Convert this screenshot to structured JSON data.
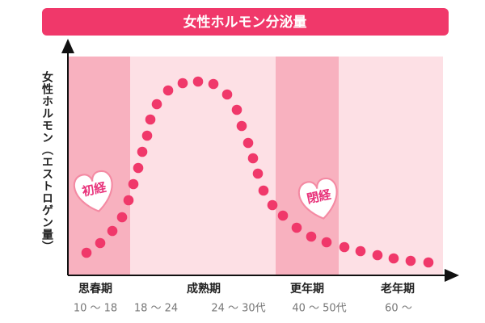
{
  "header": {
    "title": "女性ホルモン分泌量"
  },
  "axis": {
    "y_label": "女性ホルモン（エストロゲン量）"
  },
  "badges": [
    "初経",
    "閉経"
  ],
  "phases": [
    {
      "name": "思春期",
      "ages": [
        "10 〜 18"
      ]
    },
    {
      "name": "成熟期",
      "ages": [
        "18 〜 24",
        "24 〜 30代"
      ]
    },
    {
      "name": "更年期",
      "ages": [
        "40 〜 50代"
      ]
    },
    {
      "name": "老年期",
      "ages": [
        "60 〜"
      ]
    }
  ]
}
